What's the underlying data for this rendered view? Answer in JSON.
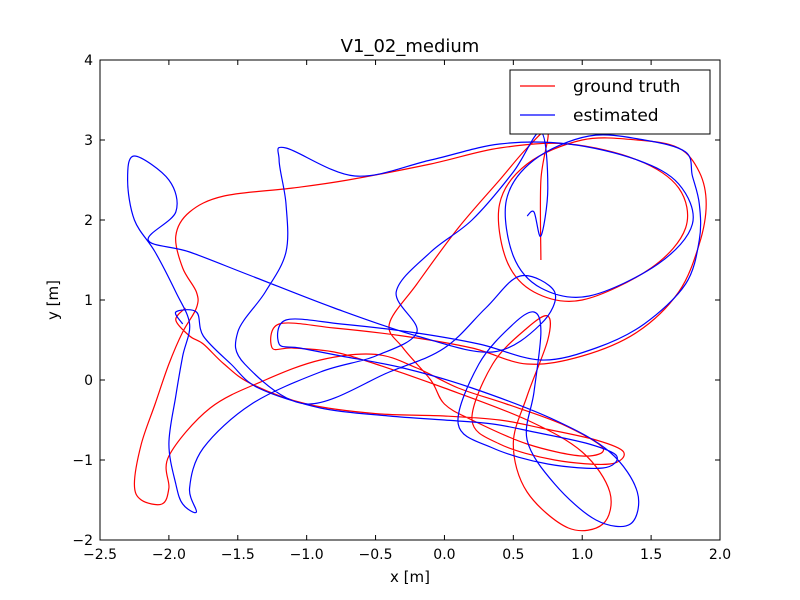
{
  "chart_data": {
    "type": "line",
    "title": "V1_02_medium",
    "xlabel": "x [m]",
    "ylabel": "y [m]",
    "xlim": [
      -2.5,
      2.0
    ],
    "ylim": [
      -2,
      4
    ],
    "xticks": [
      -2.5,
      -2.0,
      -1.5,
      -1.0,
      -0.5,
      0.0,
      0.5,
      1.0,
      1.5,
      2.0
    ],
    "xtick_labels": [
      "−2.5",
      "−2.0",
      "−1.5",
      "−1.0",
      "−0.5",
      "0.0",
      "0.5",
      "1.0",
      "1.5",
      "2.0"
    ],
    "yticks": [
      -2,
      -1,
      0,
      1,
      2,
      3,
      4
    ],
    "ytick_labels": [
      "−2",
      "−1",
      "0",
      "1",
      "2",
      "3",
      "4"
    ],
    "grid": false,
    "legend_position": "top-right",
    "series": [
      {
        "name": "ground truth",
        "color": "#ff0000",
        "points": [
          [
            -1.88,
            0.9
          ],
          [
            -1.95,
            0.75
          ],
          [
            -1.85,
            0.55
          ],
          [
            -1.75,
            0.45
          ],
          [
            -1.6,
            0.2
          ],
          [
            -1.4,
            -0.05
          ],
          [
            -1.0,
            -0.3
          ],
          [
            -0.5,
            -0.42
          ],
          [
            0.0,
            -0.45
          ],
          [
            0.4,
            -0.5
          ],
          [
            0.7,
            -0.6
          ],
          [
            1.1,
            -0.75
          ],
          [
            1.3,
            -0.9
          ],
          [
            1.2,
            -1.05
          ],
          [
            0.8,
            -1.0
          ],
          [
            0.4,
            -0.8
          ],
          [
            0.2,
            -0.5
          ],
          [
            0.35,
            0.2
          ],
          [
            0.6,
            0.65
          ],
          [
            0.75,
            0.8
          ],
          [
            0.75,
            0.5
          ],
          [
            0.6,
            -0.2
          ],
          [
            0.5,
            -0.8
          ],
          [
            0.6,
            -1.4
          ],
          [
            0.9,
            -1.85
          ],
          [
            1.15,
            -1.8
          ],
          [
            1.2,
            -1.4
          ],
          [
            1.0,
            -0.9
          ],
          [
            0.6,
            -0.5
          ],
          [
            0.0,
            -0.1
          ],
          [
            -0.5,
            0.2
          ],
          [
            -0.8,
            0.35
          ],
          [
            -1.1,
            0.4
          ],
          [
            -1.25,
            0.4
          ],
          [
            -1.2,
            0.7
          ],
          [
            -0.8,
            0.65
          ],
          [
            -0.3,
            0.55
          ],
          [
            0.2,
            0.4
          ],
          [
            0.6,
            0.2
          ],
          [
            1.0,
            0.3
          ],
          [
            1.4,
            0.6
          ],
          [
            1.7,
            1.1
          ],
          [
            1.85,
            1.7
          ],
          [
            1.9,
            2.2
          ],
          [
            1.85,
            2.6
          ],
          [
            1.7,
            2.9
          ],
          [
            1.4,
            3.0
          ],
          [
            1.0,
            3.0
          ],
          [
            0.6,
            2.7
          ],
          [
            0.4,
            2.2
          ],
          [
            0.45,
            1.5
          ],
          [
            0.65,
            1.1
          ],
          [
            1.0,
            1.0
          ],
          [
            1.5,
            1.4
          ],
          [
            1.75,
            1.9
          ],
          [
            1.7,
            2.4
          ],
          [
            1.4,
            2.75
          ],
          [
            0.9,
            2.95
          ],
          [
            0.4,
            2.9
          ],
          [
            -0.1,
            2.7
          ],
          [
            -0.7,
            2.5
          ],
          [
            -1.1,
            2.4
          ],
          [
            -1.6,
            2.3
          ],
          [
            -1.85,
            2.1
          ],
          [
            -1.95,
            1.8
          ],
          [
            -1.9,
            1.4
          ],
          [
            -1.8,
            1.1
          ],
          [
            -1.8,
            0.9
          ],
          [
            -1.9,
            0.6
          ],
          [
            -2.0,
            0.2
          ],
          [
            -2.1,
            -0.3
          ],
          [
            -2.2,
            -0.8
          ],
          [
            -2.25,
            -1.3
          ],
          [
            -2.2,
            -1.5
          ],
          [
            -2.05,
            -1.55
          ],
          [
            -2.0,
            -1.35
          ],
          [
            -2.0,
            -0.95
          ],
          [
            -1.7,
            -0.35
          ],
          [
            -1.3,
            0.0
          ],
          [
            -0.9,
            0.25
          ],
          [
            -0.5,
            0.32
          ],
          [
            -0.2,
            0.15
          ],
          [
            0.1,
            -0.1
          ],
          [
            0.45,
            -0.3
          ],
          [
            0.85,
            -0.55
          ],
          [
            1.15,
            -0.85
          ],
          [
            1.0,
            -0.95
          ],
          [
            0.6,
            -0.8
          ],
          [
            0.2,
            -0.5
          ],
          [
            0.0,
            -0.3
          ],
          [
            -0.1,
            0.0
          ],
          [
            -0.3,
            0.4
          ],
          [
            -0.4,
            0.7
          ],
          [
            -0.2,
            1.2
          ],
          [
            0.1,
            1.9
          ],
          [
            0.4,
            2.5
          ],
          [
            0.6,
            2.9
          ],
          [
            0.75,
            3.1
          ],
          [
            0.7,
            2.5
          ],
          [
            0.7,
            1.5
          ]
        ]
      },
      {
        "name": "estimated",
        "color": "#0000ff",
        "points": [
          [
            -1.9,
            0.7
          ],
          [
            -1.95,
            0.85
          ],
          [
            -1.8,
            0.85
          ],
          [
            -1.75,
            0.55
          ],
          [
            -1.55,
            0.2
          ],
          [
            -1.35,
            -0.1
          ],
          [
            -0.9,
            -0.35
          ],
          [
            -0.4,
            -0.45
          ],
          [
            0.0,
            -0.5
          ],
          [
            0.35,
            -0.55
          ],
          [
            0.65,
            -0.65
          ],
          [
            1.05,
            -0.8
          ],
          [
            1.25,
            -0.95
          ],
          [
            1.15,
            -1.1
          ],
          [
            0.75,
            -1.05
          ],
          [
            0.35,
            -0.85
          ],
          [
            0.1,
            -0.55
          ],
          [
            0.25,
            0.2
          ],
          [
            0.5,
            0.7
          ],
          [
            0.65,
            0.85
          ],
          [
            0.7,
            0.6
          ],
          [
            0.65,
            -0.15
          ],
          [
            0.6,
            -0.75
          ],
          [
            0.8,
            -1.3
          ],
          [
            1.1,
            -1.75
          ],
          [
            1.35,
            -1.8
          ],
          [
            1.4,
            -1.4
          ],
          [
            1.2,
            -0.9
          ],
          [
            0.8,
            -0.5
          ],
          [
            0.2,
            -0.1
          ],
          [
            -0.3,
            0.15
          ],
          [
            -0.75,
            0.3
          ],
          [
            -1.05,
            0.4
          ],
          [
            -1.2,
            0.45
          ],
          [
            -1.15,
            0.75
          ],
          [
            -0.75,
            0.7
          ],
          [
            -0.25,
            0.6
          ],
          [
            0.25,
            0.45
          ],
          [
            0.7,
            0.25
          ],
          [
            1.1,
            0.4
          ],
          [
            1.45,
            0.7
          ],
          [
            1.75,
            1.2
          ],
          [
            1.85,
            1.75
          ],
          [
            1.85,
            2.2
          ],
          [
            1.8,
            2.55
          ],
          [
            1.75,
            2.85
          ],
          [
            1.45,
            3.0
          ],
          [
            1.05,
            3.05
          ],
          [
            0.65,
            2.75
          ],
          [
            0.45,
            2.25
          ],
          [
            0.5,
            1.55
          ],
          [
            0.7,
            1.15
          ],
          [
            1.05,
            1.05
          ],
          [
            1.55,
            1.45
          ],
          [
            1.8,
            1.95
          ],
          [
            1.7,
            2.45
          ],
          [
            1.4,
            2.75
          ],
          [
            0.9,
            2.95
          ],
          [
            0.4,
            2.95
          ],
          [
            -0.1,
            2.75
          ],
          [
            -0.65,
            2.55
          ],
          [
            -1.15,
            2.9
          ],
          [
            -1.2,
            2.75
          ],
          [
            -1.15,
            2.2
          ],
          [
            -1.15,
            1.6
          ],
          [
            -1.3,
            1.1
          ],
          [
            -1.5,
            0.6
          ],
          [
            -1.45,
            0.2
          ],
          [
            -1.0,
            -0.3
          ],
          [
            -0.4,
            0.1
          ],
          [
            0.0,
            0.4
          ],
          [
            0.3,
            0.9
          ],
          [
            0.55,
            1.3
          ],
          [
            0.8,
            1.1
          ],
          [
            0.7,
            0.7
          ],
          [
            0.35,
            0.35
          ],
          [
            -0.2,
            0.55
          ],
          [
            -0.8,
            0.9
          ],
          [
            -1.4,
            1.3
          ],
          [
            -1.85,
            1.6
          ],
          [
            -2.15,
            1.75
          ],
          [
            -1.95,
            2.1
          ],
          [
            -2.0,
            2.5
          ],
          [
            -2.25,
            2.8
          ],
          [
            -2.3,
            2.5
          ],
          [
            -2.25,
            2.0
          ],
          [
            -2.1,
            1.6
          ],
          [
            -1.95,
            1.1
          ],
          [
            -1.85,
            0.7
          ],
          [
            -1.9,
            0.3
          ],
          [
            -1.95,
            -0.2
          ],
          [
            -2.0,
            -0.8
          ],
          [
            -1.95,
            -1.3
          ],
          [
            -1.9,
            -1.55
          ],
          [
            -1.8,
            -1.65
          ],
          [
            -1.85,
            -1.35
          ],
          [
            -1.75,
            -0.85
          ],
          [
            -1.4,
            -0.3
          ],
          [
            -0.9,
            0.1
          ],
          [
            -0.5,
            0.3
          ],
          [
            -0.2,
            0.6
          ],
          [
            -0.35,
            1.1
          ],
          [
            -0.1,
            1.6
          ],
          [
            0.2,
            2.0
          ],
          [
            0.5,
            2.6
          ],
          [
            0.7,
            3.1
          ],
          [
            0.75,
            2.4
          ],
          [
            0.7,
            1.8
          ],
          [
            0.65,
            2.1
          ],
          [
            0.6,
            2.05
          ]
        ]
      }
    ]
  }
}
